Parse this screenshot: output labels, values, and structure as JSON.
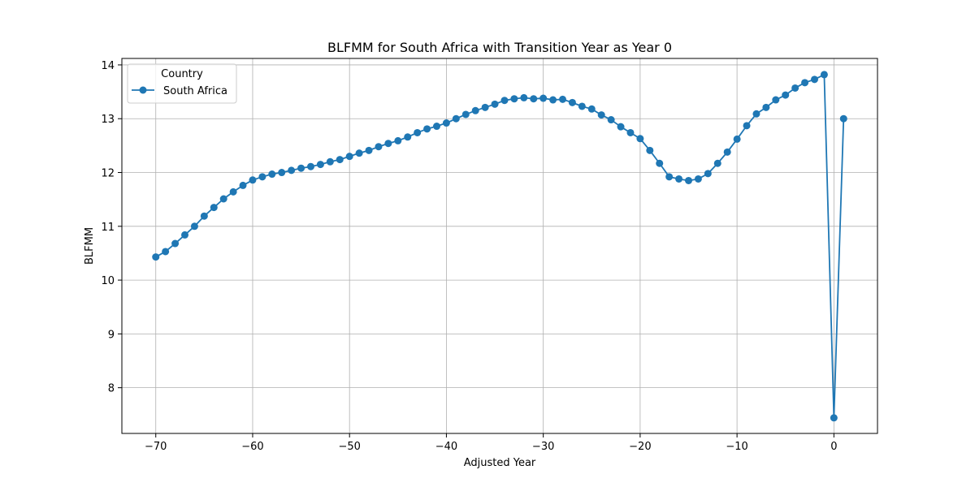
{
  "chart_data": {
    "type": "line",
    "title": "BLFMM for South Africa with Transition Year as Year 0",
    "xlabel": "Adjusted Year",
    "ylabel": "BLFMM",
    "xlim": [
      -73.5,
      4.5
    ],
    "ylim": [
      7.15,
      14.12
    ],
    "x_ticks": [
      -70,
      -60,
      -50,
      -40,
      -30,
      -20,
      -10,
      0
    ],
    "y_ticks": [
      8,
      9,
      10,
      11,
      12,
      13,
      14
    ],
    "grid": true,
    "legend": {
      "title": "Country",
      "placement": "top-left"
    },
    "series": [
      {
        "name": "South Africa",
        "color": "#1f77b4",
        "marker": "circle",
        "x": [
          -70,
          -69,
          -68,
          -67,
          -66,
          -65,
          -64,
          -63,
          -62,
          -61,
          -60,
          -59,
          -58,
          -57,
          -56,
          -55,
          -54,
          -53,
          -52,
          -51,
          -50,
          -49,
          -48,
          -47,
          -46,
          -45,
          -44,
          -43,
          -42,
          -41,
          -40,
          -39,
          -38,
          -37,
          -36,
          -35,
          -34,
          -33,
          -32,
          -31,
          -30,
          -29,
          -28,
          -27,
          -26,
          -25,
          -24,
          -23,
          -22,
          -21,
          -20,
          -19,
          -18,
          -17,
          -16,
          -15,
          -14,
          -13,
          -12,
          -11,
          -10,
          -9,
          -8,
          -7,
          -6,
          -5,
          -4,
          -3,
          -2,
          -1,
          0,
          1
        ],
        "y": [
          10.43,
          10.53,
          10.68,
          10.84,
          11.0,
          11.19,
          11.35,
          11.51,
          11.64,
          11.76,
          11.86,
          11.92,
          11.97,
          12.0,
          12.04,
          12.08,
          12.11,
          12.15,
          12.2,
          12.24,
          12.3,
          12.36,
          12.41,
          12.48,
          12.54,
          12.59,
          12.66,
          12.74,
          12.81,
          12.86,
          12.92,
          13.0,
          13.08,
          13.15,
          13.21,
          13.27,
          13.34,
          13.37,
          13.39,
          13.37,
          13.38,
          13.35,
          13.36,
          13.3,
          13.23,
          13.18,
          13.07,
          12.98,
          12.85,
          12.74,
          12.63,
          12.41,
          12.17,
          11.92,
          11.88,
          11.85,
          11.88,
          11.98,
          12.17,
          12.38,
          12.62,
          12.87,
          13.09,
          13.21,
          13.35,
          13.44,
          13.57,
          13.67,
          13.73,
          13.82,
          7.44,
          13.0
        ]
      }
    ]
  }
}
